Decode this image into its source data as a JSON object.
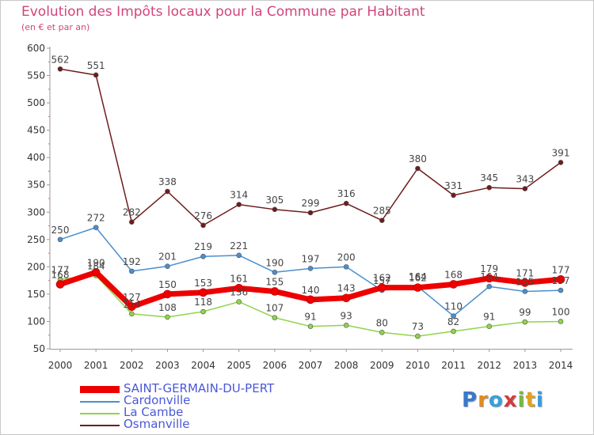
{
  "title": "Evolution des Impôts locaux pour la Commune par Habitant",
  "subtitle": "(en € et par an)",
  "logo": {
    "text": "Proxiti",
    "letters": [
      {
        "ch": "P",
        "color": "#3a78c8"
      },
      {
        "ch": "r",
        "color": "#e28a1e"
      },
      {
        "ch": "o",
        "color": "#3aa0d8"
      },
      {
        "ch": "x",
        "color": "#d83a3a"
      },
      {
        "ch": "i",
        "color": "#7ab83a"
      },
      {
        "ch": "t",
        "color": "#e2a21e"
      },
      {
        "ch": "i",
        "color": "#3a9ad8"
      }
    ]
  },
  "chart_data": {
    "type": "line",
    "x": [
      "2000",
      "2001",
      "2002",
      "2003",
      "2004",
      "2005",
      "2006",
      "2007",
      "2008",
      "2009",
      "2010",
      "2011",
      "2012",
      "2013",
      "2014"
    ],
    "ylim": [
      50,
      600
    ],
    "yticks": [
      50,
      100,
      150,
      200,
      250,
      300,
      350,
      400,
      450,
      500,
      550,
      600
    ],
    "grid": false,
    "legend_position": "bottom-left",
    "series": [
      {
        "name": "SAINT-GERMAIN-DU-PERT",
        "color": "#ee0000",
        "values": [
          168,
          190,
          127,
          150,
          153,
          161,
          155,
          140,
          143,
          162,
          162,
          168,
          179,
          171,
          177
        ]
      },
      {
        "name": "Cardonville",
        "color": "#4a8ed0",
        "values": [
          250,
          272,
          192,
          201,
          219,
          221,
          190,
          197,
          200,
          157,
          164,
          110,
          164,
          155,
          157
        ]
      },
      {
        "name": "La Cambe",
        "color": "#8fd44a",
        "values": [
          177,
          184,
          114,
          108,
          118,
          136,
          107,
          91,
          93,
          80,
          73,
          82,
          91,
          99,
          100
        ]
      },
      {
        "name": "Osmanville",
        "color": "#6e1c1c",
        "values": [
          562,
          551,
          282,
          338,
          276,
          314,
          305,
          299,
          316,
          285,
          380,
          331,
          345,
          343,
          391
        ]
      }
    ],
    "data_labels": [
      {
        "series": 0,
        "values": [
          168,
          190,
          127,
          150,
          153,
          161,
          155,
          140,
          143,
          162,
          162,
          168,
          179,
          171,
          177
        ]
      },
      {
        "series": 1,
        "values": [
          250,
          272,
          192,
          201,
          219,
          221,
          190,
          197,
          200,
          157,
          164,
          110,
          164,
          155,
          157
        ]
      },
      {
        "series": 2,
        "values": [
          177,
          184,
          114,
          108,
          118,
          136,
          107,
          91,
          93,
          80,
          73,
          82,
          91,
          99,
          100
        ]
      },
      {
        "series": 3,
        "values": [
          562,
          551,
          282,
          338,
          276,
          314,
          305,
          299,
          316,
          285,
          380,
          331,
          345,
          343,
          391
        ]
      }
    ]
  }
}
